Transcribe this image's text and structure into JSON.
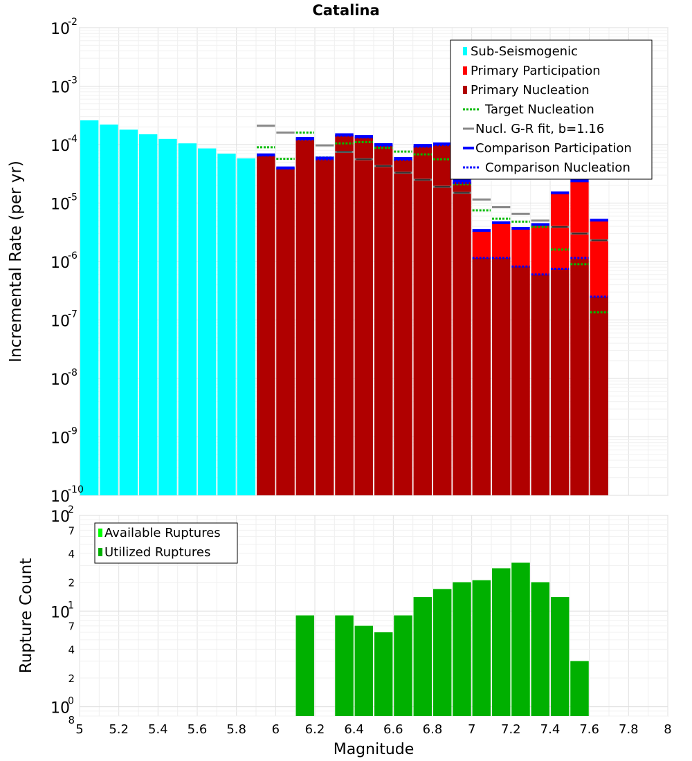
{
  "chart_data": [
    {
      "type": "bar",
      "title": "Catalina",
      "xlabel": "",
      "ylabel": "Incremental Rate (per yr)",
      "yscale": "log",
      "xlim": [
        5,
        8
      ],
      "ylim": [
        1e-10,
        0.01
      ],
      "grid": true,
      "legend_position": "top-right",
      "ytick_exponents": [
        "-10",
        "-9",
        "-8",
        "-7",
        "-6",
        "-5",
        "-4",
        "-3",
        "-2"
      ],
      "ytick_base": "10",
      "bar_width": 0.1,
      "series": [
        {
          "name": "Sub-Seismogenic",
          "color": "#00ffff",
          "mark": "bar",
          "points": [
            [
              5.05,
              0.00026
            ],
            [
              5.15,
              0.00022
            ],
            [
              5.25,
              0.00018
            ],
            [
              5.35,
              0.00015
            ],
            [
              5.45,
              0.000125
            ],
            [
              5.55,
              0.000105
            ],
            [
              5.65,
              8.6e-05
            ],
            [
              5.75,
              7e-05
            ],
            [
              5.85,
              5.8e-05
            ]
          ]
        },
        {
          "name": "Primary Participation",
          "color": "#ff0000",
          "mark": "bar",
          "points": [
            [
              5.95,
              6.5e-05
            ],
            [
              6.05,
              3.9e-05
            ],
            [
              6.15,
              0.000125
            ],
            [
              6.25,
              5.7e-05
            ],
            [
              6.35,
              0.000145
            ],
            [
              6.45,
              0.000135
            ],
            [
              6.55,
              9.8e-05
            ],
            [
              6.65,
              5.6e-05
            ],
            [
              6.75,
              9.4e-05
            ],
            [
              6.85,
              0.0001
            ],
            [
              6.95,
              2.3e-05
            ],
            [
              7.05,
              3.3e-06
            ],
            [
              7.15,
              4.5e-06
            ],
            [
              7.25,
              3.6e-06
            ],
            [
              7.35,
              4.2e-06
            ],
            [
              7.45,
              1.45e-05
            ],
            [
              7.55,
              2.3e-05
            ],
            [
              7.65,
              5e-06
            ]
          ]
        },
        {
          "name": "Primary Nucleation",
          "color": "#b00000",
          "mark": "bar",
          "points": [
            [
              5.95,
              6.5e-05
            ],
            [
              6.05,
              3.9e-05
            ],
            [
              6.15,
              0.000125
            ],
            [
              6.25,
              5.7e-05
            ],
            [
              6.35,
              0.000145
            ],
            [
              6.45,
              0.000135
            ],
            [
              6.55,
              9.8e-05
            ],
            [
              6.65,
              5.6e-05
            ],
            [
              6.75,
              9.4e-05
            ],
            [
              6.85,
              0.0001
            ],
            [
              6.95,
              2.3e-05
            ],
            [
              7.05,
              1.15e-06
            ],
            [
              7.15,
              1.15e-06
            ],
            [
              7.25,
              8.2e-07
            ],
            [
              7.35,
              6e-07
            ],
            [
              7.45,
              7.5e-07
            ],
            [
              7.55,
              1.1e-06
            ],
            [
              7.65,
              2.5e-07
            ]
          ]
        },
        {
          "name": "Target Nucleation",
          "color": "#00bb00",
          "mark": "dotted",
          "points": [
            [
              5.95,
              9e-05
            ],
            [
              6.05,
              5.7e-05
            ],
            [
              6.15,
              0.00016
            ],
            [
              6.25,
              6e-05
            ],
            [
              6.35,
              0.000105
            ],
            [
              6.45,
              0.00011
            ],
            [
              6.55,
              8.8e-05
            ],
            [
              6.65,
              7.6e-05
            ],
            [
              6.75,
              6.8e-05
            ],
            [
              6.85,
              5.6e-05
            ],
            [
              6.95,
              2.1e-05
            ],
            [
              7.05,
              7.5e-06
            ],
            [
              7.15,
              5.4e-06
            ],
            [
              7.25,
              4.8e-06
            ],
            [
              7.35,
              3.9e-06
            ],
            [
              7.45,
              1.6e-06
            ],
            [
              7.55,
              9e-07
            ],
            [
              7.65,
              1.35e-07
            ]
          ]
        },
        {
          "name": "Nucl. G-R fit, b=1.16",
          "color": "#888888",
          "mark": "dash",
          "points": [
            [
              5.95,
              0.00021
            ],
            [
              6.05,
              0.00016
            ],
            [
              6.15,
              0.000125
            ],
            [
              6.25,
              9.7e-05
            ],
            [
              6.35,
              7.5e-05
            ],
            [
              6.45,
              5.6e-05
            ],
            [
              6.55,
              4.3e-05
            ],
            [
              6.65,
              3.3e-05
            ],
            [
              6.75,
              2.5e-05
            ],
            [
              6.85,
              1.9e-05
            ],
            [
              6.95,
              1.5e-05
            ],
            [
              7.05,
              1.15e-05
            ],
            [
              7.15,
              8.5e-06
            ],
            [
              7.25,
              6.5e-06
            ],
            [
              7.35,
              5e-06
            ],
            [
              7.45,
              3.9e-06
            ],
            [
              7.55,
              3e-06
            ],
            [
              7.65,
              2.3e-06
            ]
          ]
        },
        {
          "name": "Comparison Participation",
          "color": "#0000ff",
          "mark": "solid",
          "points": [
            [
              5.95,
              6.7e-05
            ],
            [
              6.05,
              4e-05
            ],
            [
              6.15,
              0.000128
            ],
            [
              6.25,
              5.9e-05
            ],
            [
              6.35,
              0.000148
            ],
            [
              6.45,
              0.000138
            ],
            [
              6.55,
              0.0001
            ],
            [
              6.65,
              5.8e-05
            ],
            [
              6.75,
              9.7e-05
            ],
            [
              6.85,
              0.000103
            ],
            [
              6.95,
              2.4e-05
            ],
            [
              7.05,
              3.4e-06
            ],
            [
              7.15,
              4.6e-06
            ],
            [
              7.25,
              3.7e-06
            ],
            [
              7.35,
              4.3e-06
            ],
            [
              7.45,
              1.5e-05
            ],
            [
              7.55,
              2.4e-05
            ],
            [
              7.65,
              5.1e-06
            ]
          ]
        },
        {
          "name": "Comparison Nucleation",
          "color": "#0000ff",
          "mark": "dotted",
          "points": [
            [
              5.95,
              6.5e-05
            ],
            [
              6.05,
              3.9e-05
            ],
            [
              6.15,
              0.000122
            ],
            [
              6.25,
              5.6e-05
            ],
            [
              6.35,
              0.000142
            ],
            [
              6.45,
              0.000132
            ],
            [
              6.55,
              9.6e-05
            ],
            [
              6.65,
              5.5e-05
            ],
            [
              6.75,
              9.2e-05
            ],
            [
              6.85,
              9.8e-05
            ],
            [
              6.95,
              2.2e-05
            ],
            [
              7.05,
              1.15e-06
            ],
            [
              7.15,
              1.15e-06
            ],
            [
              7.25,
              8.2e-07
            ],
            [
              7.35,
              6e-07
            ],
            [
              7.45,
              7.5e-07
            ],
            [
              7.55,
              1.15e-06
            ],
            [
              7.65,
              2.5e-07
            ]
          ]
        }
      ]
    },
    {
      "type": "bar",
      "title": "",
      "xlabel": "Magnitude",
      "ylabel": "Rupture Count",
      "yscale": "log",
      "xlim": [
        5,
        8
      ],
      "ylim": [
        0.8,
        100
      ],
      "xticks": [
        "5",
        "5.2",
        "5.4",
        "5.6",
        "5.8",
        "6",
        "6.2",
        "6.4",
        "6.6",
        "6.8",
        "7",
        "7.2",
        "7.4",
        "7.6",
        "7.8",
        "8"
      ],
      "grid": true,
      "legend_position": "top-left",
      "bar_width": 0.1,
      "series": [
        {
          "name": "Available Ruptures",
          "color": "#00ff00",
          "mark": "bar",
          "points": [
            [
              6.15,
              9
            ],
            [
              6.35,
              9
            ],
            [
              6.45,
              7
            ],
            [
              6.55,
              6
            ],
            [
              6.65,
              9
            ],
            [
              6.75,
              14
            ],
            [
              6.85,
              17
            ],
            [
              6.95,
              20
            ],
            [
              7.05,
              21
            ],
            [
              7.15,
              28
            ],
            [
              7.25,
              32
            ],
            [
              7.35,
              20
            ],
            [
              7.45,
              14
            ],
            [
              7.55,
              3
            ]
          ]
        },
        {
          "name": "Utilized Ruptures",
          "color": "#00b000",
          "mark": "bar",
          "points": [
            [
              6.15,
              9
            ],
            [
              6.35,
              9
            ],
            [
              6.45,
              7
            ],
            [
              6.55,
              6
            ],
            [
              6.65,
              9
            ],
            [
              6.75,
              14
            ],
            [
              6.85,
              17
            ],
            [
              6.95,
              20
            ],
            [
              7.05,
              21
            ],
            [
              7.15,
              28
            ],
            [
              7.25,
              32
            ],
            [
              7.35,
              20
            ],
            [
              7.45,
              14
            ],
            [
              7.55,
              3
            ]
          ]
        }
      ]
    }
  ]
}
